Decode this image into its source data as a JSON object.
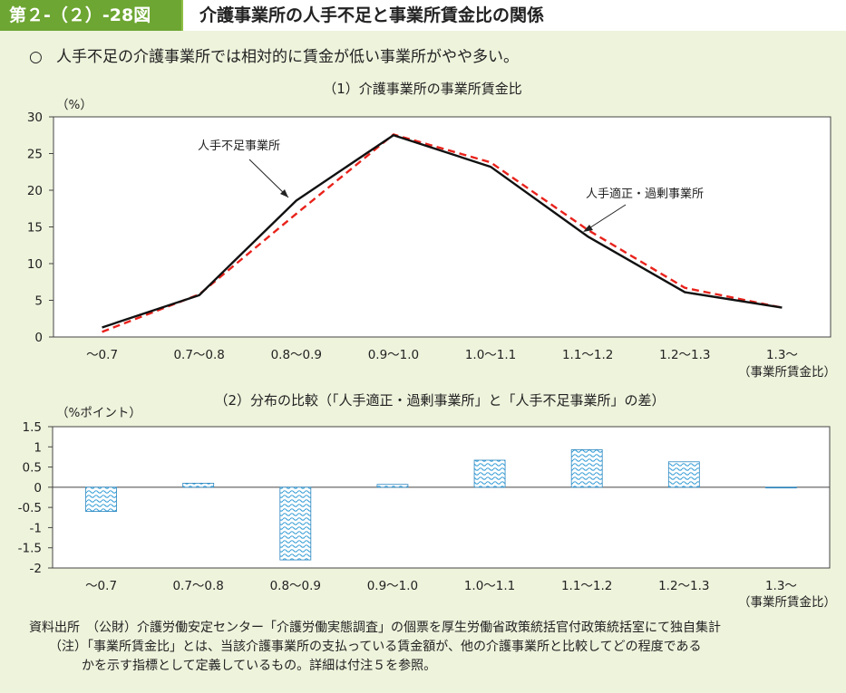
{
  "header": {
    "figure_number": "第２-（２）-28図",
    "title": "介護事業所の人手不足と事業所賃金比の関係"
  },
  "summary": {
    "bullet": "○",
    "text": "人手不足の介護事業所では相対的に賃金が低い事業所がやや多い。"
  },
  "chart_data": [
    {
      "type": "line",
      "title": "（1）介護事業所の事業所賃金比",
      "ylabel": "（%）",
      "xlabel": "（事業所賃金比）",
      "categories": [
        "～0.7",
        "0.7～0.8",
        "0.8～0.9",
        "0.9～1.0",
        "1.0～1.1",
        "1.1～1.2",
        "1.2～1.3",
        "1.3～"
      ],
      "ylim": [
        0,
        30
      ],
      "yticks": [
        0,
        5,
        10,
        15,
        20,
        25,
        30
      ],
      "series": [
        {
          "name": "人手不足事業所",
          "style": "solid",
          "color": "#111111",
          "values": [
            1.3,
            5.7,
            18.6,
            27.5,
            23.2,
            13.7,
            6.1,
            4.0
          ]
        },
        {
          "name": "人手適正・過剰事業所",
          "style": "dashed",
          "color": "#e8221b",
          "values": [
            0.7,
            5.8,
            16.8,
            27.6,
            23.8,
            14.6,
            6.7,
            4.0
          ]
        }
      ]
    },
    {
      "type": "bar",
      "title": "（2）分布の比較（「人手適正・過剰事業所」と「人手不足事業所」の差）",
      "ylabel": "（%ポイント）",
      "xlabel": "（事業所賃金比）",
      "categories": [
        "～0.7",
        "0.7～0.8",
        "0.8～0.9",
        "0.9～1.0",
        "1.0～1.1",
        "1.1～1.2",
        "1.2～1.3",
        "1.3～"
      ],
      "ylim": [
        -2,
        1.5
      ],
      "yticks": [
        1.5,
        1,
        0.5,
        0,
        -0.5,
        -1,
        -1.5,
        -2
      ],
      "ytick_labels": [
        "1.5",
        "1",
        "0.5",
        "0",
        "-0.5",
        "-1",
        "-1.5",
        "-2"
      ],
      "values": [
        -0.6,
        0.1,
        -1.8,
        0.07,
        0.67,
        0.93,
        0.63,
        0.0
      ],
      "bar_color": "#3aa0d8"
    }
  ],
  "notes": {
    "source": "資料出所　（公財）介護労働安定センター「介護労働実態調査」の個票を厚生労働省政策統括官付政策統括室にて独自集計",
    "note_line1": "（注）「事業所賃金比」とは、当該介護事業所の支払っている賃金額が、他の介護事業所と比較してどの程度であるかを示す指標として定義しているもの。詳細は付注５を参照。",
    "note_line1a": "（注）「事業所賃金比」とは、当該介護事業所の支払っている賃金額が、他の介護事業所と比較してどの程度である",
    "note_line1b": "かを示す指標として定義しているもの。詳細は付注５を参照。"
  }
}
